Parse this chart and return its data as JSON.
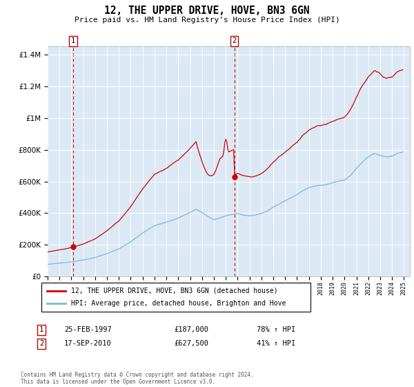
{
  "title": "12, THE UPPER DRIVE, HOVE, BN3 6GN",
  "subtitle": "Price paid vs. HM Land Registry's House Price Index (HPI)",
  "legend_line1": "12, THE UPPER DRIVE, HOVE, BN3 6GN (detached house)",
  "legend_line2": "HPI: Average price, detached house, Brighton and Hove",
  "purchase1_date": "25-FEB-1997",
  "purchase1_price": "£187,000",
  "purchase1_hpi": "78% ↑ HPI",
  "purchase1_year": 1997.15,
  "purchase1_value": 187000,
  "purchase2_date": "17-SEP-2010",
  "purchase2_price": "£627,500",
  "purchase2_hpi": "41% ↑ HPI",
  "purchase2_year": 2010.72,
  "purchase2_value": 627500,
  "footer": "Contains HM Land Registry data © Crown copyright and database right 2024.\nThis data is licensed under the Open Government Licence v3.0.",
  "hpi_color": "#7ab8d8",
  "price_color": "#cc0000",
  "vline_color": "#cc0000",
  "plot_bg": "#dce9f5",
  "ylim": [
    0,
    1450000
  ],
  "yticks": [
    0,
    200000,
    400000,
    600000,
    800000,
    1000000,
    1200000,
    1400000
  ],
  "xlim_start": 1995.0,
  "xlim_end": 2025.5
}
